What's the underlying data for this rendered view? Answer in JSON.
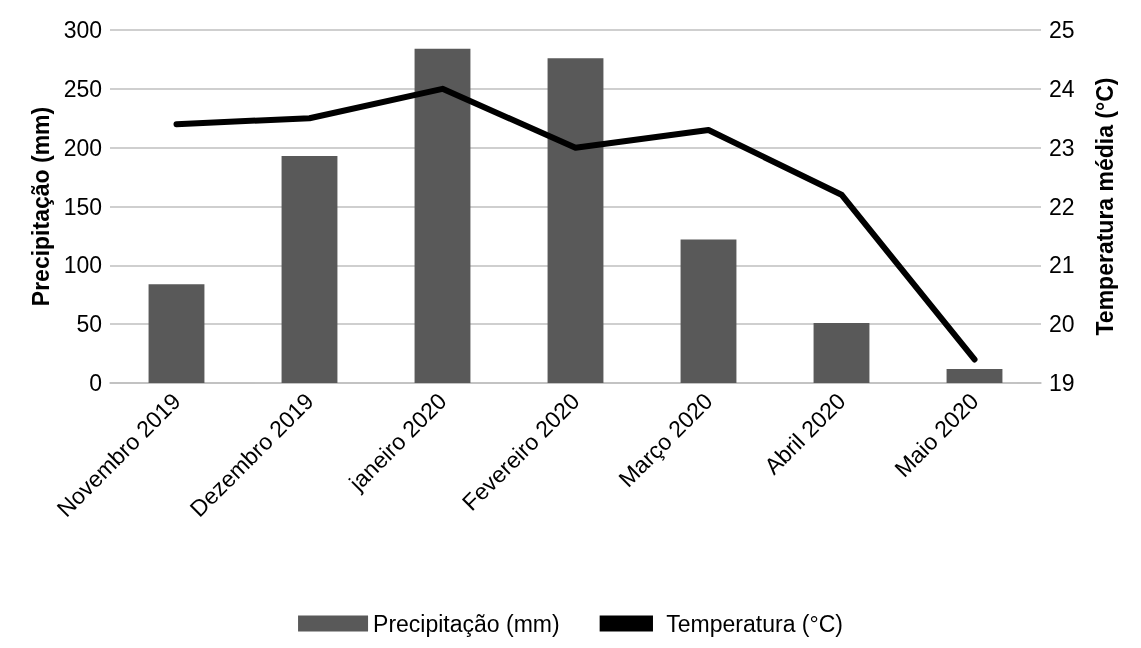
{
  "chart_data": {
    "type": "bar",
    "ylabel": "Precipitação (mm)",
    "y2label": "Temperatura média (°C)",
    "categories": [
      "Novembro 2019",
      "Dezembro 2019",
      "janeiro 2020",
      "Fevereiro 2020",
      "Março 2020",
      "Abril 2020",
      "Maio 2020"
    ],
    "series": [
      {
        "name": "Precipitação (mm)",
        "color": "#595959",
        "values": [
          84,
          193,
          284,
          276,
          122,
          51,
          12
        ]
      },
      {
        "name": "Temperatura (°C)",
        "type": "line",
        "axis": "y2",
        "color": "#000000",
        "values": [
          23.4,
          23.5,
          24.0,
          23.0,
          23.3,
          22.2,
          19.4
        ]
      }
    ],
    "ylim": [
      0,
      300
    ],
    "yticks": [
      0,
      50,
      100,
      150,
      200,
      250,
      300
    ],
    "y2lim": [
      19,
      25
    ],
    "y2ticks": [
      19,
      20,
      21,
      22,
      23,
      24,
      25
    ],
    "grid": "y",
    "legend": "bottom",
    "marker": "none",
    "line_style": "solid"
  }
}
